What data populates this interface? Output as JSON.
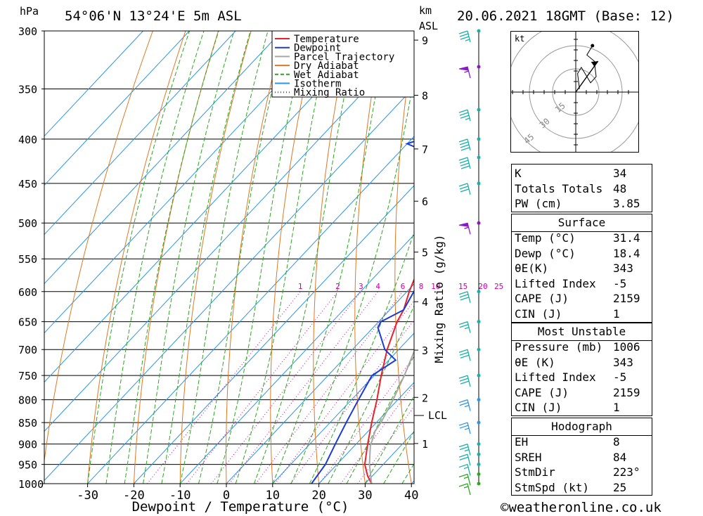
{
  "header": {
    "location": "54°06'N 13°24'E 5m ASL",
    "datetime": "20.06.2021 18GMT (Base: 12)",
    "pressure_unit": "hPa",
    "height_unit_top": "km",
    "height_unit_bottom": "ASL",
    "right_axis_label": "Mixing Ratio (g/kg)",
    "lcl_label": "LCL"
  },
  "chart_data": {
    "type": "line",
    "xlabel": "Dewpoint / Temperature (°C)",
    "ylabel": "hPa",
    "x_ticks": [
      -30,
      -20,
      -10,
      0,
      10,
      20,
      30,
      40
    ],
    "pressure_levels": [
      300,
      350,
      400,
      450,
      500,
      550,
      600,
      650,
      700,
      750,
      800,
      850,
      900,
      950,
      1000
    ],
    "height_ticks_km": [
      1,
      2,
      3,
      4,
      5,
      6,
      7,
      8,
      9
    ],
    "mixing_ratio_labels": [
      1,
      2,
      3,
      4,
      6,
      8,
      10,
      15,
      20,
      25
    ],
    "legend": [
      "Temperature",
      "Dewpoint",
      "Parcel Trajectory",
      "Dry Adiabat",
      "Wet Adiabat",
      "Isotherm",
      "Mixing Ratio"
    ],
    "colors": {
      "temperature": "#e8222a",
      "dewpoint": "#1a3cd6",
      "parcel": "#a8a8a8",
      "dry_adiabat": "#e07820",
      "wet_adiabat": "#2aa81e",
      "isotherm": "#2a96e6",
      "mixing_ratio": "#cc00aa"
    },
    "series": [
      {
        "name": "Temperature",
        "points": [
          [
            1000,
            31.4
          ],
          [
            980,
            29
          ],
          [
            950,
            26
          ],
          [
            900,
            22.5
          ],
          [
            850,
            19
          ],
          [
            800,
            15.5
          ],
          [
            750,
            11.5
          ],
          [
            700,
            7.5
          ],
          [
            650,
            4
          ],
          [
            630,
            3
          ],
          [
            600,
            0.5
          ],
          [
            560,
            -2.5
          ],
          [
            530,
            -4.5
          ],
          [
            520,
            -3.5
          ],
          [
            500,
            -3.5
          ],
          [
            470,
            -6
          ],
          [
            450,
            -8
          ],
          [
            420,
            -10.5
          ],
          [
            400,
            -12
          ],
          [
            370,
            -15.5
          ],
          [
            350,
            -18
          ],
          [
            320,
            -21.5
          ],
          [
            300,
            -24
          ]
        ]
      },
      {
        "name": "Dewpoint",
        "points": [
          [
            1000,
            18.4
          ],
          [
            950,
            17.5
          ],
          [
            900,
            15.5
          ],
          [
            850,
            13.5
          ],
          [
            800,
            11.5
          ],
          [
            750,
            9.5
          ],
          [
            720,
            11.5
          ],
          [
            700,
            7
          ],
          [
            660,
            1
          ],
          [
            650,
            0.5
          ],
          [
            630,
            3
          ],
          [
            600,
            1.5
          ],
          [
            550,
            -1.5
          ],
          [
            530,
            -3
          ],
          [
            520,
            -5
          ],
          [
            510,
            -6
          ],
          [
            500,
            -10
          ],
          [
            460,
            -9
          ],
          [
            450,
            -8
          ],
          [
            420,
            -20
          ],
          [
            405,
            -30
          ],
          [
            400,
            -28
          ],
          [
            370,
            -28
          ],
          [
            340,
            -30.5
          ],
          [
            310,
            -33
          ],
          [
            300,
            -32
          ]
        ]
      },
      {
        "name": "Parcel Trajectory",
        "points": [
          [
            1000,
            31.4
          ],
          [
            950,
            27
          ],
          [
            905,
            23.5
          ],
          [
            870,
            21.5
          ],
          [
            850,
            21
          ],
          [
            800,
            19
          ],
          [
            750,
            16.5
          ],
          [
            700,
            13.5
          ],
          [
            650,
            10.5
          ],
          [
            600,
            7
          ],
          [
            550,
            3.5
          ],
          [
            500,
            -0.5
          ],
          [
            450,
            -6
          ],
          [
            400,
            -12
          ],
          [
            370,
            -16
          ]
        ]
      }
    ],
    "wind_barbs": [
      {
        "pressure": 1000,
        "speed_kt": 15,
        "color": "#2aa81e"
      },
      {
        "pressure": 975,
        "speed_kt": 15,
        "color": "#2aa81e"
      },
      {
        "pressure": 950,
        "speed_kt": 15,
        "color": "#18b0a8"
      },
      {
        "pressure": 925,
        "speed_kt": 20,
        "color": "#18b0a8"
      },
      {
        "pressure": 900,
        "speed_kt": 25,
        "color": "#18b0a8"
      },
      {
        "pressure": 850,
        "speed_kt": 25,
        "color": "#2a96e6"
      },
      {
        "pressure": 800,
        "speed_kt": 25,
        "color": "#2a96e6"
      },
      {
        "pressure": 750,
        "speed_kt": 30,
        "color": "#18b0a8"
      },
      {
        "pressure": 700,
        "speed_kt": 30,
        "color": "#18b0a8"
      },
      {
        "pressure": 650,
        "speed_kt": 25,
        "color": "#18b0a8"
      },
      {
        "pressure": 600,
        "speed_kt": 30,
        "color": "#18b0a8"
      },
      {
        "pressure": 500,
        "speed_kt": 55,
        "color": "#8a18c8"
      },
      {
        "pressure": 450,
        "speed_kt": 30,
        "color": "#18b0a8"
      },
      {
        "pressure": 420,
        "speed_kt": 40,
        "color": "#18b0a8"
      },
      {
        "pressure": 400,
        "speed_kt": 40,
        "color": "#18b0a8"
      },
      {
        "pressure": 370,
        "speed_kt": 35,
        "color": "#18b0a8"
      },
      {
        "pressure": 330,
        "speed_kt": 55,
        "color": "#8a18c8"
      },
      {
        "pressure": 300,
        "speed_kt": 35,
        "color": "#18b0a8"
      }
    ],
    "hodograph": {
      "unit": "kt",
      "ring_labels": [
        "15",
        "30",
        "45"
      ],
      "points": [
        [
          4,
          2
        ],
        [
          2,
          12
        ],
        [
          6,
          16
        ],
        [
          16,
          6
        ],
        [
          22,
          10
        ],
        [
          20,
          20
        ],
        [
          12,
          24
        ],
        [
          18,
          30
        ]
      ],
      "storm_motion": [
        12,
        20
      ]
    }
  },
  "indices": {
    "general": [
      {
        "label": "K",
        "value": "34"
      },
      {
        "label": "Totals Totals",
        "value": "48"
      },
      {
        "label": "PW (cm)",
        "value": "3.85"
      }
    ],
    "surface_title": "Surface",
    "surface": [
      {
        "label": "Temp (°C)",
        "value": "31.4"
      },
      {
        "label": "Dewp (°C)",
        "value": "18.4"
      },
      {
        "label": "θE(K)",
        "value": "343"
      },
      {
        "label": "Lifted Index",
        "value": "-5"
      },
      {
        "label": "CAPE (J)",
        "value": "2159"
      },
      {
        "label": "CIN (J)",
        "value": "1"
      }
    ],
    "mu_title": "Most Unstable",
    "mu": [
      {
        "label": "Pressure (mb)",
        "value": "1006"
      },
      {
        "label": "θE (K)",
        "value": "343"
      },
      {
        "label": "Lifted Index",
        "value": "-5"
      },
      {
        "label": "CAPE (J)",
        "value": "2159"
      },
      {
        "label": "CIN (J)",
        "value": "1"
      }
    ],
    "hodo_title": "Hodograph",
    "hodo": [
      {
        "label": "EH",
        "value": "8"
      },
      {
        "label": "SREH",
        "value": "84"
      },
      {
        "label": "StmDir",
        "value": "223°"
      },
      {
        "label": "StmSpd (kt)",
        "value": "25"
      }
    ]
  },
  "footer": {
    "copyright": "©weatheronline.co.uk"
  }
}
